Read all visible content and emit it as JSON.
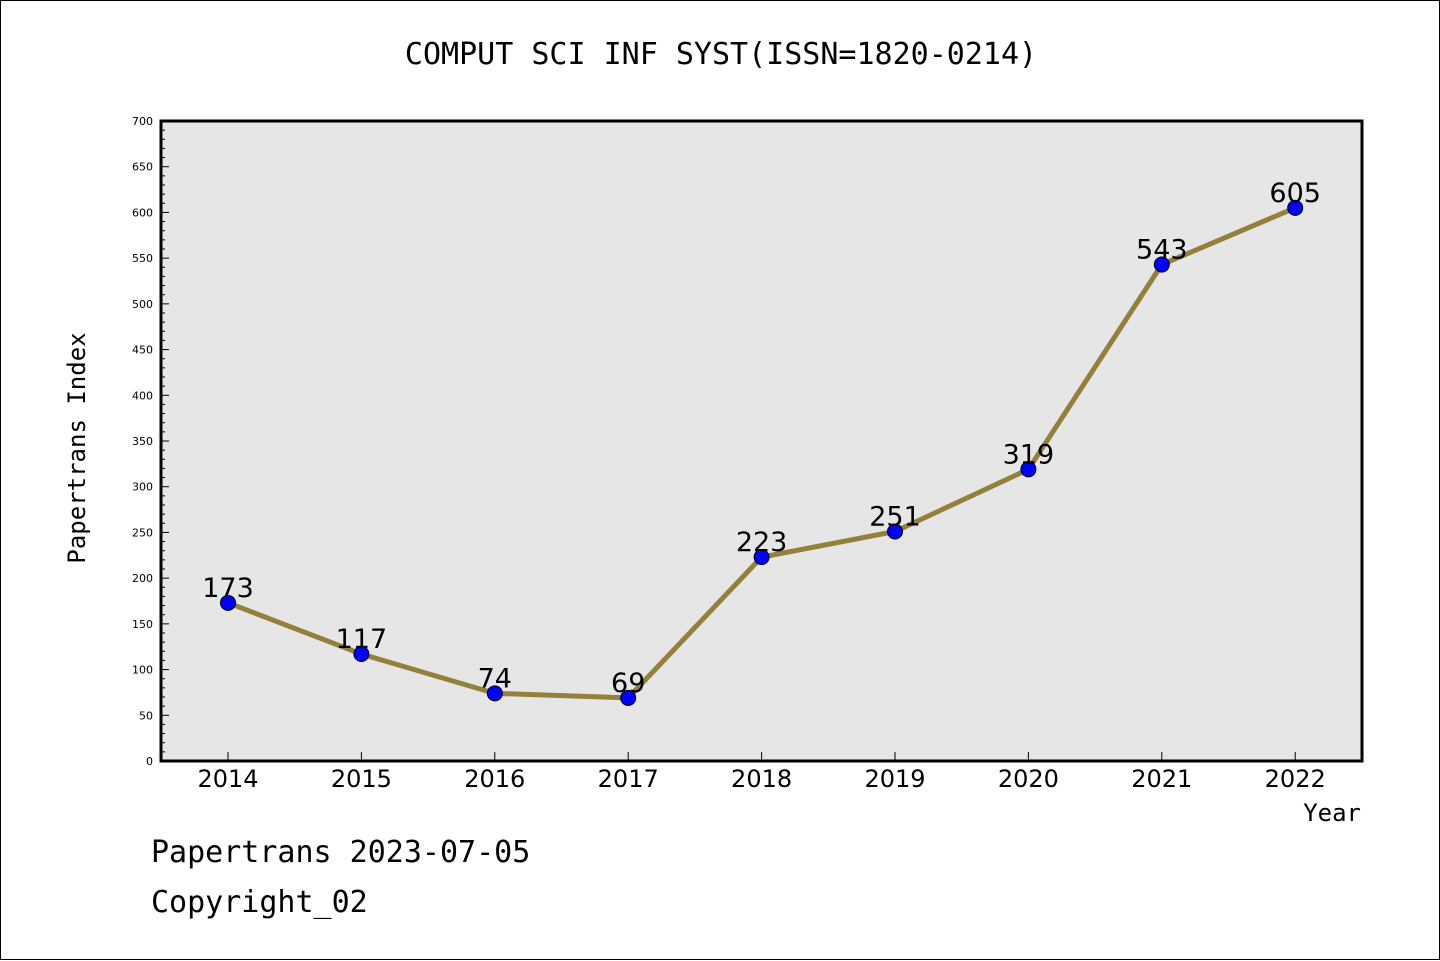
{
  "title": "COMPUT SCI INF SYST(ISSN=1820-0214)",
  "footer": {
    "line1": "Papertrans 2023-07-05",
    "line2": "Copyright_02"
  },
  "colors": {
    "line": "#93803a",
    "marker": "#0000ff",
    "plot_bg": "#e6e6e6"
  },
  "chart_data": {
    "type": "line",
    "xlabel": "Year",
    "ylabel": "Papertrans Index",
    "ylim": [
      0,
      700
    ],
    "yticks": [
      0,
      50,
      100,
      150,
      200,
      250,
      300,
      350,
      400,
      450,
      500,
      550,
      600,
      650,
      700
    ],
    "categories": [
      "2014",
      "2015",
      "2016",
      "2017",
      "2018",
      "2019",
      "2020",
      "2021",
      "2022"
    ],
    "values": [
      173,
      117,
      74,
      69,
      223,
      251,
      319,
      543,
      605
    ],
    "grid": false,
    "legend": "none"
  }
}
